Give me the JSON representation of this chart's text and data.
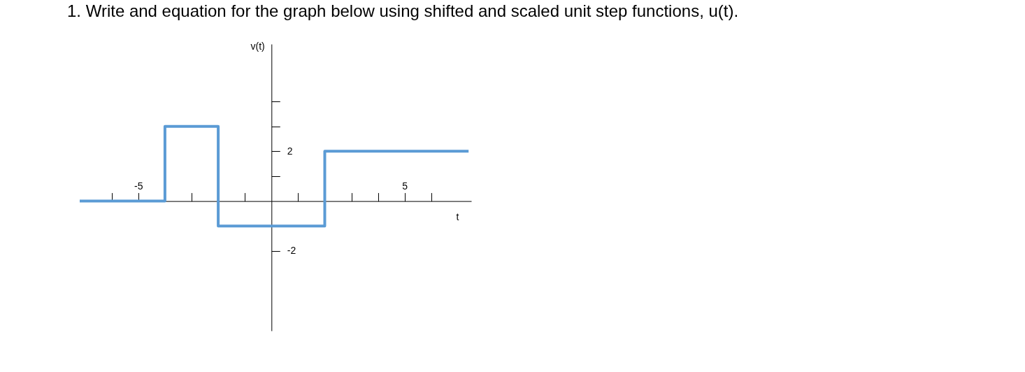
{
  "chart_data": {
    "type": "step",
    "title": "1. Write and equation for the graph below using shifted and scaled unit step functions, u(t).",
    "xlabel": "t",
    "ylabel": "v(t)",
    "x": [
      -7.2,
      -4,
      -2,
      2,
      7.4
    ],
    "series": [
      {
        "color": "#5b9bd5",
        "values": [
          0,
          3,
          -1,
          2,
          2
        ]
      }
    ],
    "xlim": [
      -7.2,
      7.5
    ],
    "ylim": [
      -5.2,
      6.3
    ],
    "xticks": [
      {
        "value": -6,
        "label": null
      },
      -5,
      {
        "value": -4,
        "label": null
      },
      {
        "value": -3,
        "label": null
      },
      {
        "value": -2,
        "label": null
      },
      {
        "value": -1,
        "label": null
      },
      {
        "value": 1,
        "label": null
      },
      {
        "value": 2,
        "label": null
      },
      {
        "value": 3,
        "label": null
      },
      {
        "value": 4,
        "label": null
      },
      5,
      {
        "value": 6,
        "label": null
      }
    ],
    "yticks": [
      -2,
      {
        "value": -1,
        "label": null
      },
      {
        "value": 1,
        "label": null
      },
      2,
      {
        "value": 3,
        "label": null
      },
      {
        "value": 4,
        "label": null
      }
    ],
    "grid": false,
    "marker": "none",
    "line_style": "solid"
  }
}
